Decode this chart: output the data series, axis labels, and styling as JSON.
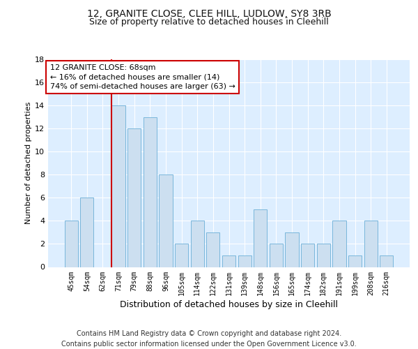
{
  "title1": "12, GRANITE CLOSE, CLEE HILL, LUDLOW, SY8 3RB",
  "title2": "Size of property relative to detached houses in Cleehill",
  "xlabel": "Distribution of detached houses by size in Cleehill",
  "ylabel": "Number of detached properties",
  "categories": [
    "45sqm",
    "54sqm",
    "62sqm",
    "71sqm",
    "79sqm",
    "88sqm",
    "96sqm",
    "105sqm",
    "114sqm",
    "122sqm",
    "131sqm",
    "139sqm",
    "148sqm",
    "156sqm",
    "165sqm",
    "174sqm",
    "182sqm",
    "191sqm",
    "199sqm",
    "208sqm",
    "216sqm"
  ],
  "values": [
    4,
    6,
    0,
    14,
    12,
    13,
    8,
    2,
    4,
    3,
    1,
    1,
    5,
    2,
    3,
    2,
    2,
    4,
    1,
    4,
    1
  ],
  "bar_color": "#ccdff0",
  "bar_edge_color": "#6aaed6",
  "vline_index": 3,
  "annotation_text": "12 GRANITE CLOSE: 68sqm\n← 16% of detached houses are smaller (14)\n74% of semi-detached houses are larger (63) →",
  "ylim": [
    0,
    18
  ],
  "yticks": [
    0,
    2,
    4,
    6,
    8,
    10,
    12,
    14,
    16,
    18
  ],
  "footer": "Contains HM Land Registry data © Crown copyright and database right 2024.\nContains public sector information licensed under the Open Government Licence v3.0.",
  "bg_color": "#ddeeff",
  "grid_color": "#ffffff",
  "vline_color": "#cc0000",
  "box_edge_color": "#cc0000",
  "title1_fontsize": 10,
  "title2_fontsize": 9,
  "annotation_fontsize": 8,
  "footer_fontsize": 7,
  "ylabel_fontsize": 8,
  "xlabel_fontsize": 9
}
